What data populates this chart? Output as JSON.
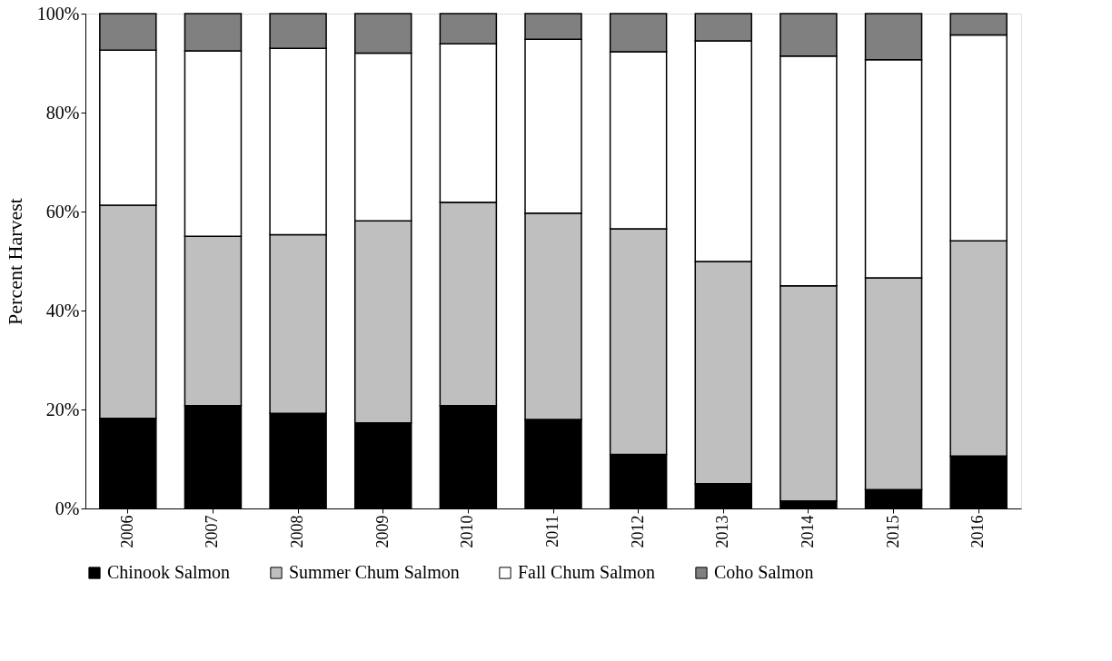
{
  "chart_data": {
    "type": "bar",
    "stacked": true,
    "ylabel": "Percent Harvest",
    "categories": [
      "2006",
      "2007",
      "2008",
      "2009",
      "2010",
      "2011",
      "2012",
      "2013",
      "2014",
      "2015",
      "2016"
    ],
    "series": [
      {
        "name": "Chinook Salmon",
        "color": "#000000",
        "values": [
          18.2,
          20.8,
          19.2,
          17.3,
          20.8,
          18.0,
          10.9,
          5.0,
          1.5,
          3.8,
          10.6
        ]
      },
      {
        "name": "Summer Chum Salmon",
        "color": "#bfbfbf",
        "values": [
          43.1,
          34.2,
          36.1,
          40.8,
          41.1,
          41.7,
          45.6,
          44.9,
          43.5,
          42.8,
          43.5
        ]
      },
      {
        "name": "Fall Chum Salmon",
        "color": "#ffffff",
        "values": [
          31.3,
          37.5,
          37.7,
          33.9,
          32.0,
          35.1,
          35.8,
          44.6,
          46.4,
          44.1,
          41.6
        ]
      },
      {
        "name": "Coho Salmon",
        "color": "#808080",
        "values": [
          7.4,
          7.5,
          7.0,
          8.0,
          6.1,
          5.2,
          7.7,
          5.5,
          8.6,
          9.3,
          4.3
        ]
      }
    ],
    "ylim": [
      0,
      100
    ],
    "yticks": [
      {
        "value": 0,
        "label": "0%"
      },
      {
        "value": 20,
        "label": "20%"
      },
      {
        "value": 40,
        "label": "40%"
      },
      {
        "value": 60,
        "label": "60%"
      },
      {
        "value": 80,
        "label": "80%"
      },
      {
        "value": 100,
        "label": "100%"
      }
    ],
    "grid": false,
    "legend": "bottom"
  }
}
